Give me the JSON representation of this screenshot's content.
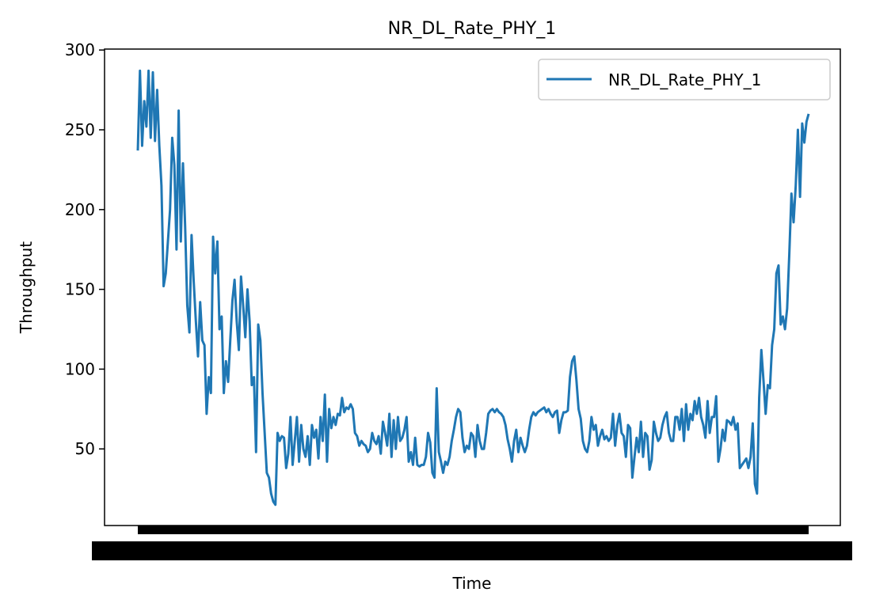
{
  "chart_data": {
    "type": "line",
    "title": "NR_DL_Rate_PHY_1",
    "xlabel": "Time",
    "ylabel": "Throughput",
    "ylim": [
      0,
      300
    ],
    "yticks": [
      50,
      100,
      150,
      200,
      250,
      300
    ],
    "grid": false,
    "legend_position": "top-right",
    "xtick_labels_note": "dense overlapping timestamp labels (unreadable)",
    "series": [
      {
        "name": "NR_DL_Rate_PHY_1",
        "color": "#1f77b4",
        "values": [
          237,
          287,
          240,
          268,
          252,
          287,
          245,
          286,
          243,
          275,
          240,
          215,
          152,
          160,
          180,
          200,
          245,
          228,
          175,
          262,
          180,
          229,
          190,
          140,
          123,
          184,
          155,
          130,
          108,
          142,
          118,
          115,
          72,
          95,
          85,
          183,
          160,
          180,
          125,
          133,
          85,
          105,
          92,
          118,
          143,
          156,
          130,
          112,
          158,
          140,
          120,
          150,
          130,
          90,
          95,
          48,
          128,
          118,
          85,
          60,
          35,
          32,
          22,
          17,
          15,
          60,
          55,
          58,
          57,
          38,
          47,
          70,
          40,
          55,
          70,
          42,
          65,
          50,
          45,
          58,
          40,
          65,
          57,
          62,
          44,
          70,
          55,
          84,
          42,
          75,
          63,
          70,
          65,
          72,
          71,
          82,
          73,
          76,
          75,
          78,
          75,
          60,
          58,
          52,
          55,
          53,
          52,
          48,
          50,
          60,
          55,
          53,
          58,
          47,
          67,
          60,
          52,
          72,
          45,
          68,
          50,
          70,
          55,
          57,
          62,
          70,
          42,
          48,
          40,
          57,
          40,
          39,
          40,
          40,
          45,
          60,
          54,
          35,
          32,
          88,
          48,
          42,
          35,
          42,
          40,
          45,
          55,
          62,
          70,
          75,
          73,
          57,
          48,
          52,
          50,
          60,
          58,
          45,
          65,
          55,
          50,
          50,
          60,
          72,
          74,
          75,
          73,
          75,
          73,
          72,
          70,
          65,
          56,
          50,
          42,
          55,
          62,
          48,
          57,
          52,
          48,
          52,
          62,
          70,
          73,
          71,
          73,
          74,
          75,
          76,
          73,
          75,
          72,
          70,
          73,
          74,
          60,
          68,
          73,
          73,
          74,
          95,
          105,
          108,
          93,
          75,
          69,
          55,
          50,
          48,
          55,
          70,
          62,
          65,
          52,
          58,
          62,
          56,
          58,
          55,
          57,
          72,
          52,
          65,
          72,
          60,
          58,
          45,
          65,
          63,
          32,
          45,
          57,
          48,
          67,
          45,
          60,
          58,
          37,
          43,
          67,
          60,
          55,
          57,
          65,
          70,
          73,
          60,
          55,
          55,
          70,
          70,
          62,
          75,
          55,
          78,
          62,
          72,
          68,
          80,
          72,
          82,
          70,
          65,
          57,
          80,
          60,
          70,
          70,
          83,
          42,
          50,
          62,
          55,
          68,
          67,
          65,
          70,
          62,
          66,
          38,
          40,
          42,
          44,
          38,
          45,
          66,
          28,
          22,
          82,
          112,
          93,
          72,
          90,
          88,
          115,
          125,
          160,
          165,
          128,
          133,
          125,
          138,
          172,
          210,
          192,
          215,
          250,
          208,
          254,
          242,
          255,
          260
        ]
      }
    ]
  }
}
